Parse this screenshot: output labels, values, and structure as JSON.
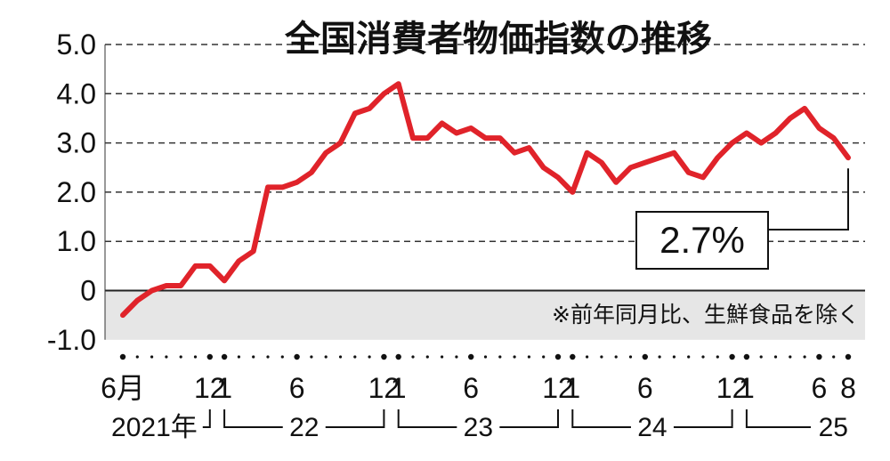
{
  "chart_data": {
    "type": "line",
    "title": "全国消費者物価指数の推移",
    "note": "※前年同月比、生鮮食品を除く",
    "ylabel": "",
    "xlabel": "",
    "ylim": [
      -1.0,
      5.0
    ],
    "y_ticks": [
      "5.0",
      "4.0",
      "3.0",
      "2.0",
      "1.0",
      "0",
      "-1.0"
    ],
    "x_month_labels": [
      {
        "month": "2021-06",
        "text": "6月"
      },
      {
        "month": "2021-12",
        "text": "12"
      },
      {
        "month": "2022-01",
        "text": "1"
      },
      {
        "month": "2022-06",
        "text": "6"
      },
      {
        "month": "2022-12",
        "text": "12"
      },
      {
        "month": "2023-01",
        "text": "1"
      },
      {
        "month": "2023-06",
        "text": "6"
      },
      {
        "month": "2023-12",
        "text": "12"
      },
      {
        "month": "2024-01",
        "text": "1"
      },
      {
        "month": "2024-06",
        "text": "6"
      },
      {
        "month": "2024-12",
        "text": "12"
      },
      {
        "month": "2025-01",
        "text": "1"
      },
      {
        "month": "2025-06",
        "text": "6"
      },
      {
        "month": "2025-08",
        "text": "8"
      }
    ],
    "year_labels": [
      {
        "text": "2021年",
        "from": "2021-06",
        "to": "2021-12"
      },
      {
        "text": "22",
        "from": "2022-01",
        "to": "2022-12"
      },
      {
        "text": "23",
        "from": "2023-01",
        "to": "2023-12"
      },
      {
        "text": "24",
        "from": "2024-01",
        "to": "2024-12"
      },
      {
        "text": "25",
        "from": "2025-01",
        "to": "2025-08"
      }
    ],
    "series": [
      {
        "color": "#e0232a",
        "x": [
          "2021-06",
          "2021-07",
          "2021-08",
          "2021-09",
          "2021-10",
          "2021-11",
          "2021-12",
          "2022-01",
          "2022-02",
          "2022-03",
          "2022-04",
          "2022-05",
          "2022-06",
          "2022-07",
          "2022-08",
          "2022-09",
          "2022-10",
          "2022-11",
          "2022-12",
          "2023-01",
          "2023-02",
          "2023-03",
          "2023-04",
          "2023-05",
          "2023-06",
          "2023-07",
          "2023-08",
          "2023-09",
          "2023-10",
          "2023-11",
          "2023-12",
          "2024-01",
          "2024-02",
          "2024-03",
          "2024-04",
          "2024-05",
          "2024-06",
          "2024-07",
          "2024-08",
          "2024-09",
          "2024-10",
          "2024-11",
          "2024-12",
          "2025-01",
          "2025-02",
          "2025-03",
          "2025-04",
          "2025-05",
          "2025-06",
          "2025-07",
          "2025-08"
        ],
        "values": [
          -0.5,
          -0.2,
          0.0,
          0.1,
          0.1,
          0.5,
          0.5,
          0.2,
          0.6,
          0.8,
          2.1,
          2.1,
          2.2,
          2.4,
          2.8,
          3.0,
          3.6,
          3.7,
          4.0,
          4.2,
          3.1,
          3.1,
          3.4,
          3.2,
          3.3,
          3.1,
          3.1,
          2.8,
          2.9,
          2.5,
          2.3,
          2.0,
          2.8,
          2.6,
          2.2,
          2.5,
          2.6,
          2.7,
          2.8,
          2.4,
          2.3,
          2.7,
          3.0,
          3.2,
          3.0,
          3.2,
          3.5,
          3.7,
          3.3,
          3.1,
          2.7
        ]
      }
    ],
    "callout": {
      "text": "2.7%",
      "month": "2025-08",
      "value": 2.7
    },
    "colors": {
      "line": "#e0232a",
      "grid": "#333333",
      "negative_band": "#e6e6e6",
      "text": "#111111"
    }
  }
}
